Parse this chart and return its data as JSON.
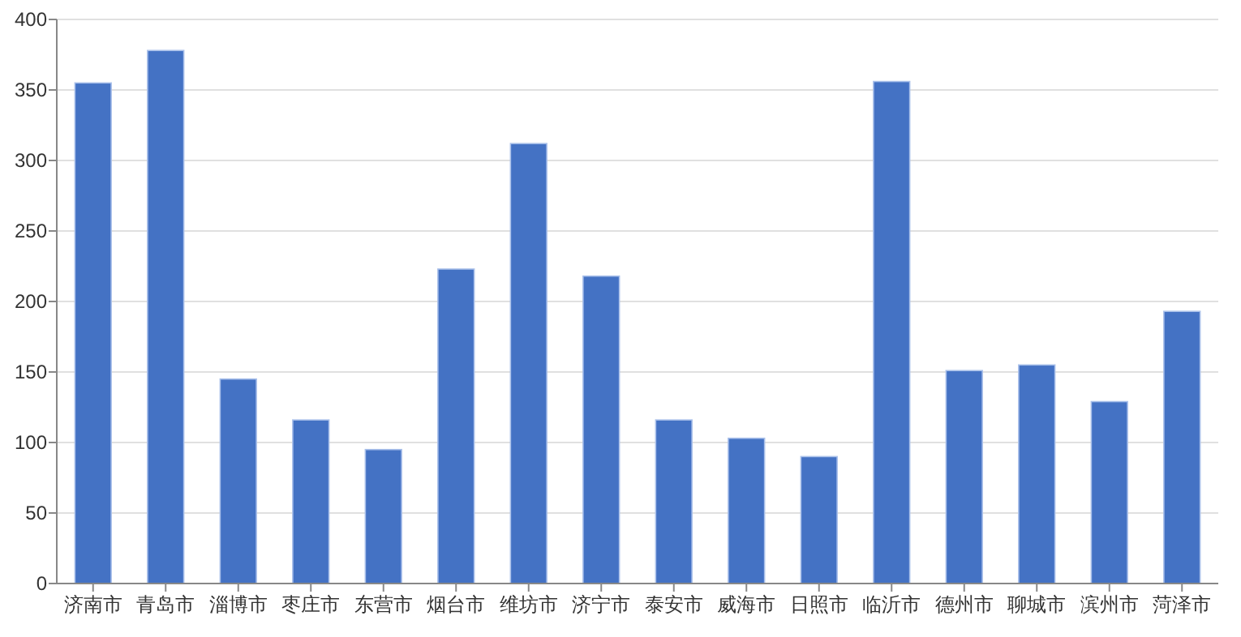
{
  "chart_data": {
    "type": "bar",
    "categories": [
      "济南市",
      "青岛市",
      "淄博市",
      "枣庄市",
      "东营市",
      "烟台市",
      "维坊市",
      "济宁市",
      "泰安市",
      "威海市",
      "日照市",
      "临沂市",
      "德州市",
      "聊城市",
      "滨州市",
      "菏泽市"
    ],
    "values": [
      355,
      378,
      145,
      116,
      95,
      223,
      312,
      218,
      116,
      103,
      90,
      356,
      151,
      155,
      129,
      193
    ],
    "color": "#4472c4",
    "ylim": [
      0,
      400
    ],
    "yticks": [
      0,
      50,
      100,
      150,
      200,
      250,
      300,
      350,
      400
    ],
    "grid": "y"
  }
}
